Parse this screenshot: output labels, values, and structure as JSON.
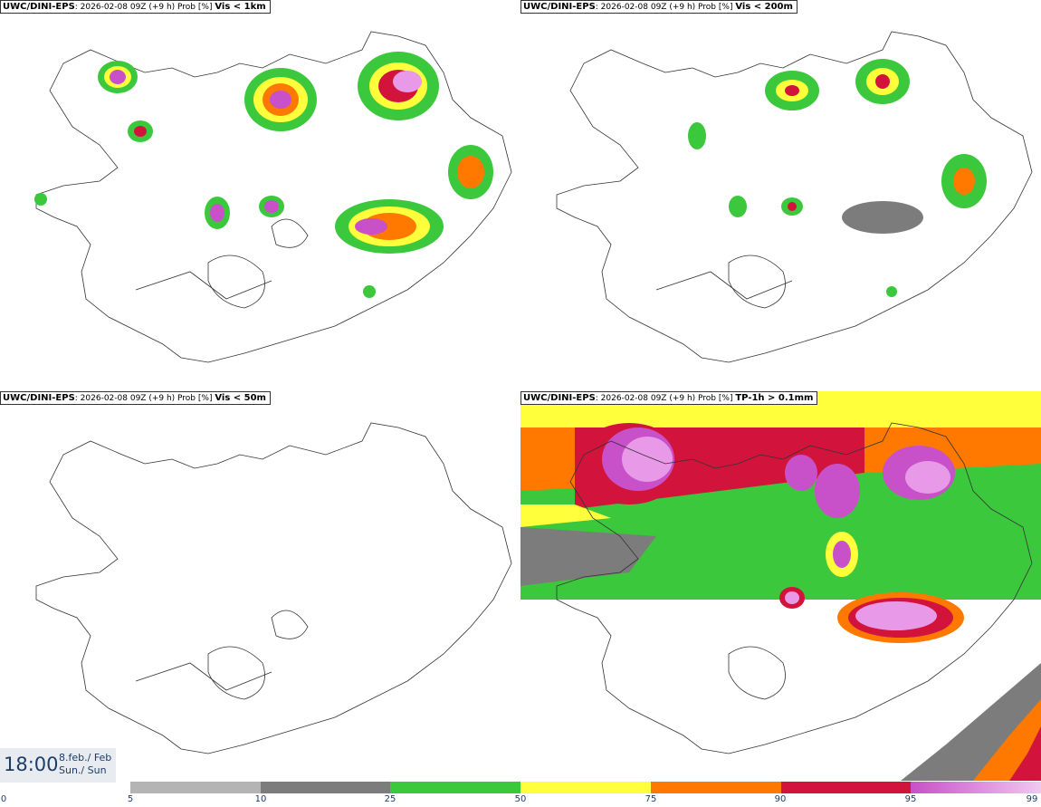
{
  "panels": [
    {
      "model": "UWC/DINI-EPS",
      "info": "2026-02-08 09Z (+9 h) Prob [%]",
      "threshold": "Vis < 1km"
    },
    {
      "model": "UWC/DINI-EPS",
      "info": "2026-02-08 09Z (+9 h) Prob [%]",
      "threshold": "Vis < 200m"
    },
    {
      "model": "UWC/DINI-EPS",
      "info": "2026-02-08 09Z (+9 h) Prob [%]",
      "threshold": "Vis < 50m"
    },
    {
      "model": "UWC/DINI-EPS",
      "info": "2026-02-08 09Z (+9 h) Prob [%]",
      "threshold": "TP-1h > 0.1mm"
    }
  ],
  "valid_time": {
    "time": "18:00",
    "date": "8.feb./ Feb",
    "day": "Sun./ Sun"
  },
  "legend": {
    "ticks": [
      "0",
      "5",
      "10",
      "25",
      "50",
      "75",
      "90",
      "95",
      "99"
    ],
    "colors": [
      "#b4b4b4",
      "#7c7c7c",
      "#3cc83c",
      "#ffff3c",
      "#ff7800",
      "#d2143c",
      "#c850c8"
    ]
  }
}
